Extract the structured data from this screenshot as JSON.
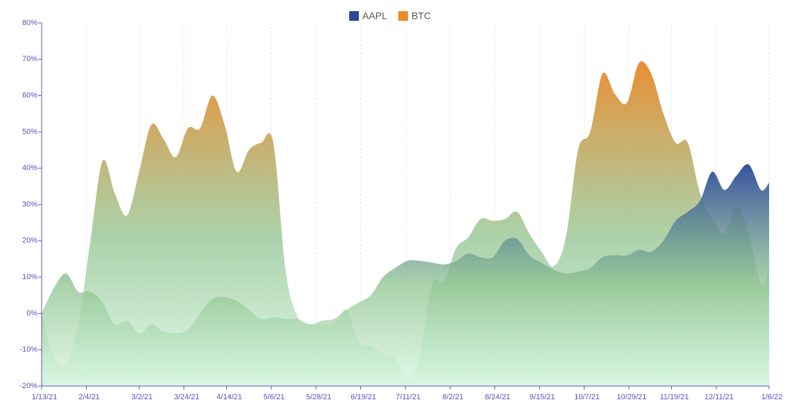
{
  "chart_data": {
    "type": "area",
    "x": [
      "1/13/21",
      "1/19/21",
      "1/25/21",
      "1/31/21",
      "2/6/21",
      "2/12/21",
      "2/18/21",
      "2/24/21",
      "3/2/21",
      "3/8/21",
      "3/14/21",
      "3/20/21",
      "3/26/21",
      "4/1/21",
      "4/7/21",
      "4/13/21",
      "4/19/21",
      "4/25/21",
      "5/1/21",
      "5/7/21",
      "5/13/21",
      "5/19/21",
      "5/25/21",
      "5/31/21",
      "6/6/21",
      "6/12/21",
      "6/18/21",
      "6/24/21",
      "6/30/21",
      "7/6/21",
      "7/12/21",
      "7/18/21",
      "7/24/21",
      "7/30/21",
      "8/5/21",
      "8/11/21",
      "8/17/21",
      "8/23/21",
      "8/29/21",
      "9/4/21",
      "9/10/21",
      "9/16/21",
      "9/22/21",
      "9/28/21",
      "10/4/21",
      "10/10/21",
      "10/16/21",
      "10/22/21",
      "10/28/21",
      "11/3/21",
      "11/9/21",
      "11/15/21",
      "11/21/21",
      "11/27/21",
      "12/3/21",
      "12/9/21",
      "12/15/21",
      "12/21/21",
      "12/27/21",
      "1/2/22",
      "1/6/22"
    ],
    "series": [
      {
        "name": "BTC",
        "color": "#e8892a",
        "values": [
          0,
          -12,
          -14,
          -3,
          20,
          42,
          33,
          27,
          39,
          52,
          48,
          43,
          51,
          51,
          60,
          52,
          39,
          45,
          47,
          47,
          12,
          -1,
          -3,
          -3,
          -3,
          1,
          -8,
          -9,
          -11,
          -12.5,
          -18,
          -12,
          8,
          9,
          18,
          21,
          26,
          25.5,
          26,
          28,
          22,
          17,
          13,
          21,
          45,
          50,
          66,
          60.5,
          58,
          69,
          66,
          55,
          47,
          47,
          33,
          26,
          22,
          29.5,
          22,
          8,
          12
        ]
      },
      {
        "name": "AAPL",
        "color": "#2c4a9a",
        "values": [
          0,
          7,
          11,
          6,
          6,
          3,
          -3,
          -2,
          -5.5,
          -3,
          -5,
          -5.5,
          -4.5,
          0,
          4,
          4.5,
          3.5,
          1,
          -1.5,
          -1,
          -1.5,
          -1.5,
          -3,
          -2,
          -1.5,
          1,
          3,
          5,
          10,
          12.5,
          14.5,
          14.5,
          14,
          13.5,
          14.5,
          16.5,
          15.5,
          15.5,
          20,
          20.5,
          16,
          14,
          12,
          11,
          11.5,
          12.5,
          15.5,
          16,
          16,
          17.5,
          17,
          20,
          25.5,
          28,
          31,
          39,
          34,
          38,
          41,
          34,
          36
        ]
      }
    ],
    "legend_order": [
      "AAPL",
      "BTC"
    ],
    "xticks": [
      "1/13/21",
      "2/4/21",
      "3/2/21",
      "3/24/21",
      "4/14/21",
      "5/6/21",
      "5/28/21",
      "6/19/21",
      "7/11/21",
      "8/2/21",
      "8/24/21",
      "9/15/21",
      "10/7/21",
      "10/29/21",
      "11/19/21",
      "12/11/21",
      "1/6/22"
    ],
    "ylim": [
      -20,
      80
    ],
    "yticks": [
      {
        "value": -20,
        "label": "-20%"
      },
      {
        "value": -10,
        "label": "-10%"
      },
      {
        "value": 0,
        "label": "0%"
      },
      {
        "value": 10,
        "label": "10%"
      },
      {
        "value": 20,
        "label": "20%"
      },
      {
        "value": 30,
        "label": "30%"
      },
      {
        "value": 40,
        "label": "40%"
      },
      {
        "value": 50,
        "label": "50%"
      },
      {
        "value": 60,
        "label": "60%"
      },
      {
        "value": 70,
        "label": "70%"
      },
      {
        "value": 80,
        "label": "80%"
      }
    ],
    "grid": "x",
    "legend": "top"
  }
}
